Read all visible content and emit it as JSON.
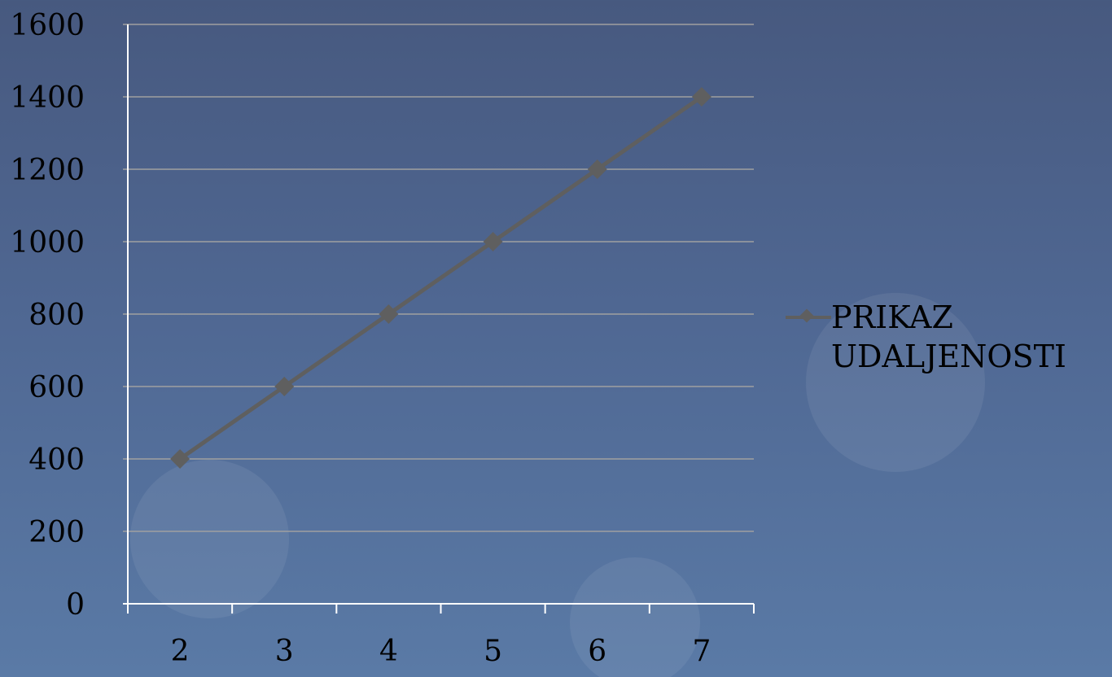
{
  "chart_data": {
    "type": "line",
    "title": "",
    "xlabel": "",
    "ylabel": "",
    "x": [
      2,
      3,
      4,
      5,
      6,
      7
    ],
    "series": [
      {
        "name": "PRIKAZ UDALJENOSTI",
        "values": [
          400,
          600,
          800,
          1000,
          1200,
          1400
        ]
      }
    ],
    "ylim": [
      0,
      1600
    ],
    "yticks": [
      0,
      200,
      400,
      600,
      800,
      1000,
      1200,
      1400,
      1600
    ],
    "grid": true,
    "legend": "right"
  },
  "colors": {
    "series_line": "#5f5f5f",
    "gridline": "#a0a0a0",
    "axis": "#ffffff",
    "text": "#000000"
  }
}
